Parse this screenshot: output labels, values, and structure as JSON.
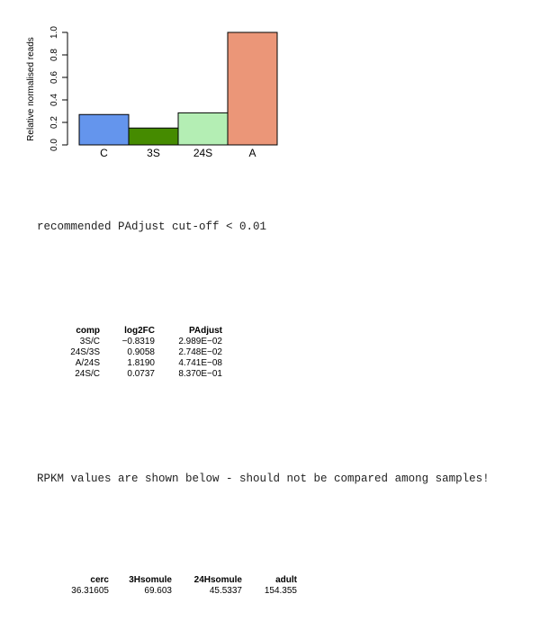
{
  "chart_data": {
    "type": "bar",
    "categories": [
      "C",
      "3S",
      "24S",
      "A"
    ],
    "values": [
      0.27,
      0.15,
      0.285,
      1.0
    ],
    "colors": [
      "#6495ed",
      "#458b00",
      "#b4eeb4",
      "#eb9678"
    ],
    "ylabel": "Relative normalised reads",
    "ylim": [
      0,
      1.0
    ],
    "yticks": [
      "0.0",
      "0.2",
      "0.4",
      "0.6",
      "0.8",
      "1.0"
    ],
    "grid": false
  },
  "padjust_note": "recommended PAdjust cut-off < 0.01",
  "comparison_table": {
    "headers": [
      "comp",
      "log2FC",
      "PAdjust"
    ],
    "rows": [
      [
        "3S/C",
        "−0.8319",
        "2.989E−02"
      ],
      [
        "24S/3S",
        "0.9058",
        "2.748E−02"
      ],
      [
        "A/24S",
        "1.8190",
        "4.741E−08"
      ],
      [
        "24S/C",
        "0.0737",
        "8.370E−01"
      ]
    ]
  },
  "rpkm_note": "RPKM values are shown below - should not be compared among samples!",
  "rpkm_table": {
    "headers": [
      "cerc",
      "3Hsomule",
      "24Hsomule",
      "adult"
    ],
    "values": [
      "36.31605",
      "69.603",
      "45.5337",
      "154.355"
    ]
  }
}
